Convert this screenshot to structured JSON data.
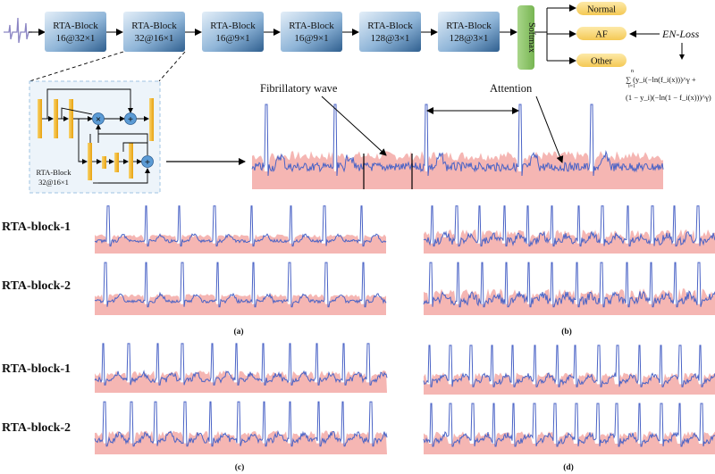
{
  "pipeline": {
    "blocks": [
      {
        "title": "RTA-Block",
        "sub": "16@32×1"
      },
      {
        "title": "RTA-Block",
        "sub": "32@16×1"
      },
      {
        "title": "RTA-Block",
        "sub": "16@9×1"
      },
      {
        "title": "RTA-Block",
        "sub": "16@9×1"
      },
      {
        "title": "RTA-Block",
        "sub": "128@3×1"
      },
      {
        "title": "RTA-Block",
        "sub": "128@3×1"
      }
    ],
    "softmax": "Softmax",
    "outputs": [
      "Normal",
      "AF",
      "Other"
    ],
    "loss_label": "EN-Loss",
    "loss_formula_line1": "∑ (y_i(−ln(f_i(x)))^γ +",
    "loss_formula_line2": "(1 − y_i)(−ln(1 − f_i(x)))^γ)",
    "loss_sum_limits_top": "n",
    "loss_sum_limits_bottom": "i=1"
  },
  "detail": {
    "block_title": "RTA-Block",
    "block_sub": "32@16×1",
    "multiply_symbol": "×",
    "add_symbol": "+"
  },
  "annotations": {
    "fibrillatory": "Fibrillatory wave",
    "attention": "Attention"
  },
  "rows": {
    "block1": "RTA-block-1",
    "block2": "RTA-block-2"
  },
  "panels": [
    "(a)",
    "(b)",
    "(c)",
    "(d)"
  ],
  "colors": {
    "block_light": "#cfe3f3",
    "block_dark": "#2f5f8f",
    "softmax": "#8dc46a",
    "output_pill": "#f9d97a",
    "ecg_line": "#4a63c6",
    "attention_fill": "#f3a9a6",
    "unit_bar": "#f2b21c",
    "node": "#5b9bd5"
  },
  "panel_settings": [
    {
      "name": "a",
      "beats": 8,
      "noise": "low"
    },
    {
      "name": "b",
      "beats": 12,
      "noise": "high"
    },
    {
      "name": "c",
      "beats": 11,
      "noise": "medium"
    },
    {
      "name": "d",
      "beats": 14,
      "noise": "medium"
    }
  ]
}
